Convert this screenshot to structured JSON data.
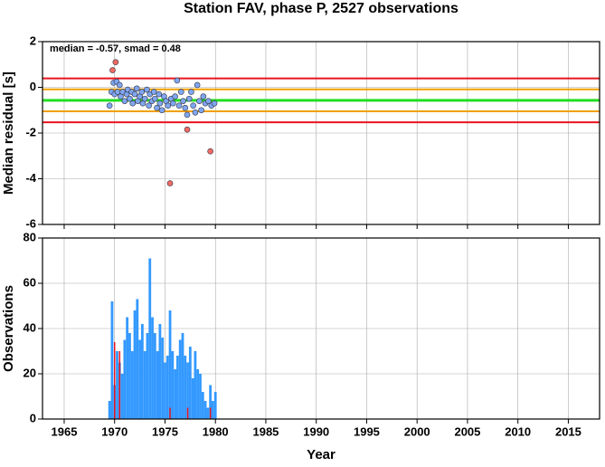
{
  "title": "Station FAV, phase P, 2527 observations",
  "chart_data": [
    {
      "type": "scatter",
      "ylabel": "Median residual [s]",
      "annotation": "median = -0.57, smad = 0.48",
      "xlim": [
        1962.85,
        2018.1
      ],
      "xticks": [
        1965,
        1970,
        1975,
        1980,
        1985,
        1990,
        1995,
        2000,
        2005,
        2010,
        2015
      ],
      "ylim": [
        -6,
        2
      ],
      "yticks": [
        -6,
        -4,
        -2,
        0,
        2
      ],
      "grid": true,
      "hlines": [
        {
          "value": 0.39,
          "color": "#e8141e"
        },
        {
          "value": -0.09,
          "color": "#f0a000"
        },
        {
          "value": -0.57,
          "color": "#22dd22"
        },
        {
          "value": -1.05,
          "color": "#f0a000"
        },
        {
          "value": -1.53,
          "color": "#e8141e"
        }
      ],
      "series": [
        {
          "color": "#7fa6f0",
          "x": [
            1969.5,
            1969.7,
            1969.9,
            1970.0,
            1970.2,
            1970.3,
            1970.5,
            1970.6,
            1970.8,
            1971.0,
            1971.2,
            1971.3,
            1971.5,
            1971.7,
            1971.8,
            1972.0,
            1972.2,
            1972.3,
            1972.5,
            1972.7,
            1972.8,
            1973.0,
            1973.2,
            1973.4,
            1973.5,
            1973.7,
            1973.9,
            1974.0,
            1974.2,
            1974.4,
            1974.5,
            1974.7,
            1974.9,
            1975.1,
            1975.3,
            1975.6,
            1975.8,
            1976.0,
            1976.2,
            1976.4,
            1976.6,
            1976.8,
            1977.0,
            1977.2,
            1977.4,
            1977.6,
            1977.8,
            1978.0,
            1978.2,
            1978.4,
            1978.6,
            1978.8,
            1979.0,
            1979.3,
            1979.6,
            1979.9
          ],
          "values": [
            -0.8,
            -0.2,
            0.2,
            -0.3,
            0.25,
            -0.2,
            0.1,
            -0.4,
            -0.2,
            -0.6,
            -0.3,
            -0.1,
            -0.5,
            -0.2,
            -0.7,
            -0.3,
            -0.05,
            -0.6,
            -0.4,
            -0.2,
            -0.7,
            -0.5,
            -0.1,
            -0.8,
            -0.3,
            -0.6,
            -0.2,
            -0.5,
            -0.9,
            -0.3,
            -0.7,
            -1.0,
            -0.4,
            -0.6,
            -0.8,
            -0.5,
            -0.7,
            -0.4,
            0.3,
            -0.8,
            -0.2,
            -0.6,
            -0.9,
            -1.2,
            -0.5,
            -0.2,
            -0.8,
            -1.1,
            0.1,
            -0.6,
            -1.0,
            -0.4,
            -0.7,
            -0.6,
            -0.8,
            -0.7
          ]
        },
        {
          "color": "#f06a64",
          "x": [
            1969.8,
            1970.1,
            1975.5,
            1977.2,
            1979.5
          ],
          "values": [
            0.75,
            1.1,
            -4.2,
            -1.85,
            -2.8
          ]
        }
      ]
    },
    {
      "type": "bar",
      "ylabel": "Observations",
      "xlabel": "Year",
      "xlim": [
        1962.85,
        2018.1
      ],
      "xticks": [
        1965,
        1970,
        1975,
        1980,
        1985,
        1990,
        1995,
        2000,
        2005,
        2010,
        2015
      ],
      "ylim": [
        0,
        80
      ],
      "yticks": [
        0,
        20,
        40,
        60,
        80
      ],
      "grid": true,
      "x": [
        1969.5,
        1969.75,
        1970,
        1970.25,
        1970.5,
        1970.75,
        1971,
        1971.25,
        1971.5,
        1971.75,
        1972,
        1972.25,
        1972.5,
        1972.75,
        1973,
        1973.25,
        1973.5,
        1973.75,
        1974,
        1974.25,
        1974.5,
        1974.75,
        1975,
        1975.25,
        1975.5,
        1975.75,
        1976,
        1976.25,
        1976.5,
        1976.75,
        1977,
        1977.25,
        1977.5,
        1977.75,
        1978,
        1978.25,
        1978.5,
        1978.75,
        1979,
        1979.25,
        1979.5,
        1979.75,
        1980
      ],
      "series": [
        {
          "color": "#3399ff",
          "values": [
            8,
            52,
            15,
            30,
            25,
            20,
            35,
            45,
            38,
            30,
            48,
            53,
            35,
            42,
            30,
            38,
            71,
            45,
            38,
            30,
            42,
            36,
            25,
            28,
            48,
            30,
            22,
            28,
            35,
            38,
            28,
            25,
            32,
            18,
            30,
            22,
            20,
            12,
            8,
            5,
            15,
            8,
            12
          ]
        },
        {
          "color": "#e8141e",
          "values": [
            null,
            null,
            34,
            null,
            30,
            null,
            null,
            null,
            null,
            null,
            null,
            null,
            null,
            null,
            null,
            null,
            null,
            null,
            null,
            null,
            null,
            null,
            null,
            null,
            5,
            null,
            null,
            null,
            null,
            null,
            null,
            5,
            null,
            null,
            null,
            null,
            null,
            null,
            null,
            null,
            5,
            null,
            null
          ]
        }
      ]
    }
  ]
}
